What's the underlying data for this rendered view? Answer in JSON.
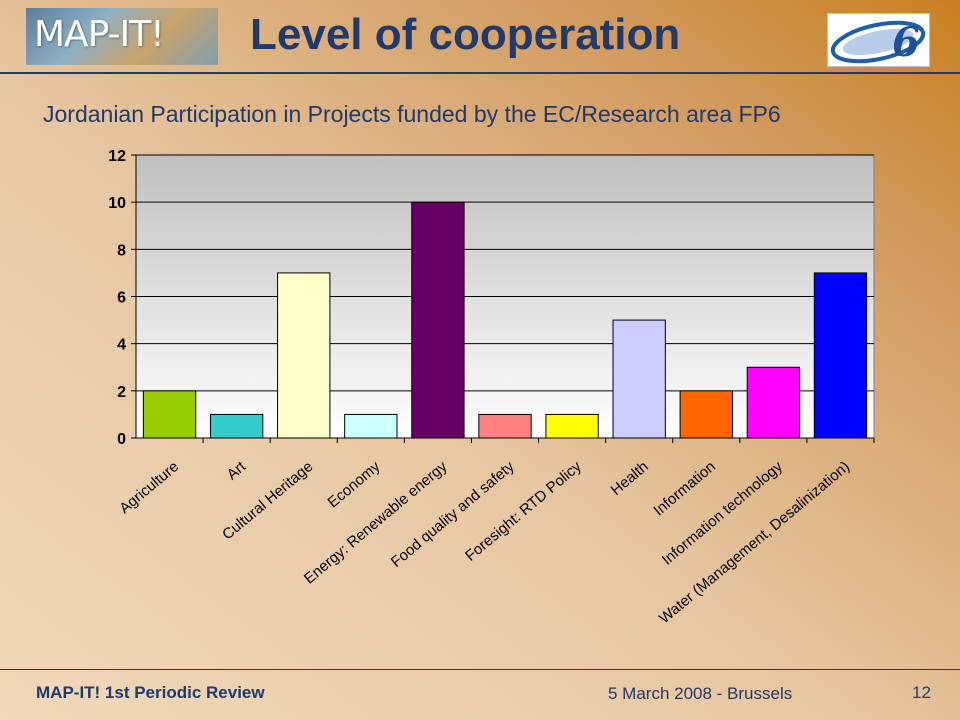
{
  "header": {
    "logo_text": "MAP-IT!",
    "title": "Level of cooperation",
    "fp6_logo_text": "6"
  },
  "subtitle": "Jordanian Participation in Projects funded by the EC/Research area FP6",
  "chart_data": {
    "type": "bar",
    "categories": [
      "Agriculture",
      "Art",
      "Cultural Heritage",
      "Economy",
      "Energy: Renewable energy",
      "Food quality and safety",
      "Foresight: RTD Policy",
      "Health",
      "Information",
      "Information technology",
      "Water (Management, Desalinization)"
    ],
    "values": [
      2,
      1,
      7,
      1,
      10,
      1,
      1,
      5,
      2,
      3,
      7
    ],
    "colors": [
      "#99cc00",
      "#33cccc",
      "#ffffcc",
      "#ccffff",
      "#660066",
      "#ff8080",
      "#ffff00",
      "#ccccff",
      "#ff6600",
      "#ff00ff",
      "#0000ff"
    ],
    "ylim": [
      0,
      12
    ],
    "yticks": [
      0,
      2,
      4,
      6,
      8,
      10,
      12
    ],
    "grid": true,
    "legend": "none",
    "title": "",
    "xlabel": "",
    "ylabel": ""
  },
  "footer": {
    "left": "MAP-IT! 1st Periodic Review",
    "date": "5 March 2008 - Brussels",
    "page": "12"
  }
}
